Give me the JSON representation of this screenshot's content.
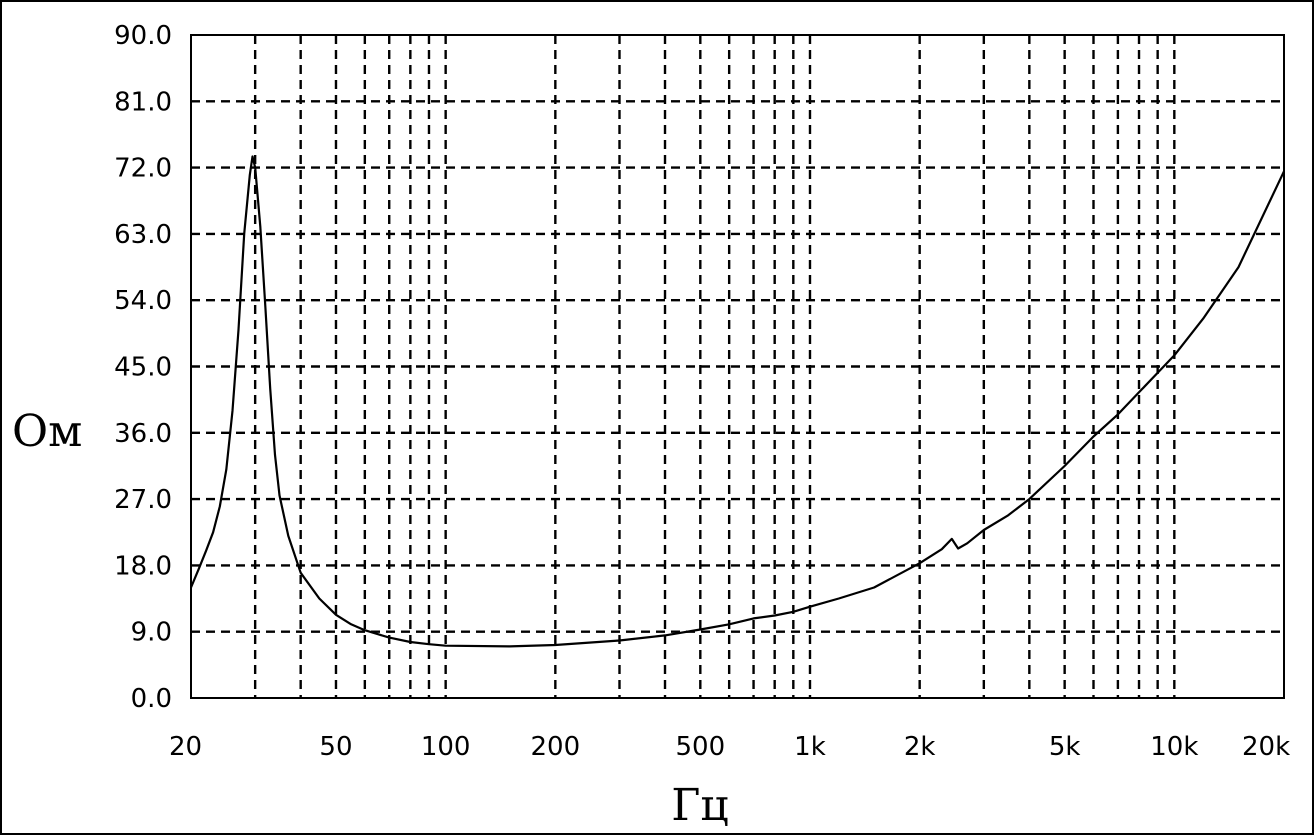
{
  "chart_data": {
    "type": "line",
    "title": "",
    "xlabel": "Гц",
    "ylabel": "Ом",
    "x_scale": "log",
    "xlim": [
      20,
      20000
    ],
    "ylim": [
      0,
      90
    ],
    "grid": true,
    "x_tick_labels": [
      {
        "value": 20,
        "label": "20"
      },
      {
        "value": 50,
        "label": "50"
      },
      {
        "value": 100,
        "label": "100"
      },
      {
        "value": 200,
        "label": "200"
      },
      {
        "value": 500,
        "label": "500"
      },
      {
        "value": 1000,
        "label": "1k"
      },
      {
        "value": 2000,
        "label": "2k"
      },
      {
        "value": 5000,
        "label": "5k"
      },
      {
        "value": 10000,
        "label": "10k"
      },
      {
        "value": 20000,
        "label": "20k"
      }
    ],
    "x_gridlines": [
      30,
      40,
      50,
      60,
      70,
      80,
      90,
      100,
      200,
      300,
      400,
      500,
      600,
      700,
      800,
      900,
      1000,
      2000,
      3000,
      4000,
      5000,
      6000,
      7000,
      8000,
      9000,
      10000
    ],
    "y_ticks": [
      0,
      9,
      18,
      27,
      36,
      45,
      54,
      63,
      72,
      81,
      90
    ],
    "y_tick_labels": [
      "0.0",
      "9.0",
      "18.0",
      "27.0",
      "36.0",
      "45.0",
      "54.0",
      "63.0",
      "72.0",
      "81.0",
      "90.0"
    ],
    "series": [
      {
        "color": "#000000",
        "points": [
          [
            20,
            15.0
          ],
          [
            21,
            17.5
          ],
          [
            22,
            20.0
          ],
          [
            23,
            22.5
          ],
          [
            24,
            26.0
          ],
          [
            25,
            31.0
          ],
          [
            26,
            39.0
          ],
          [
            27,
            50.0
          ],
          [
            28,
            63.0
          ],
          [
            29,
            71.0
          ],
          [
            29.5,
            73.5
          ],
          [
            30,
            72.0
          ],
          [
            31,
            64.0
          ],
          [
            32,
            53.0
          ],
          [
            33,
            42.0
          ],
          [
            34,
            33.0
          ],
          [
            35,
            27.5
          ],
          [
            37,
            22.0
          ],
          [
            40,
            17.0
          ],
          [
            45,
            13.5
          ],
          [
            50,
            11.3
          ],
          [
            55,
            10.0
          ],
          [
            60,
            9.2
          ],
          [
            70,
            8.2
          ],
          [
            80,
            7.6
          ],
          [
            90,
            7.3
          ],
          [
            100,
            7.1
          ],
          [
            150,
            7.0
          ],
          [
            200,
            7.2
          ],
          [
            300,
            7.8
          ],
          [
            400,
            8.5
          ],
          [
            500,
            9.3
          ],
          [
            600,
            10.0
          ],
          [
            700,
            10.8
          ],
          [
            800,
            11.2
          ],
          [
            900,
            11.7
          ],
          [
            1000,
            12.4
          ],
          [
            1200,
            13.5
          ],
          [
            1500,
            15.0
          ],
          [
            2000,
            18.3
          ],
          [
            2300,
            20.2
          ],
          [
            2450,
            21.6
          ],
          [
            2550,
            20.3
          ],
          [
            2700,
            21.0
          ],
          [
            3000,
            22.8
          ],
          [
            3500,
            24.8
          ],
          [
            4000,
            27.0
          ],
          [
            5000,
            31.5
          ],
          [
            6000,
            35.5
          ],
          [
            7000,
            38.5
          ],
          [
            8000,
            41.5
          ],
          [
            10000,
            46.5
          ],
          [
            12000,
            51.5
          ],
          [
            15000,
            58.5
          ],
          [
            20000,
            71.5
          ]
        ]
      }
    ]
  }
}
